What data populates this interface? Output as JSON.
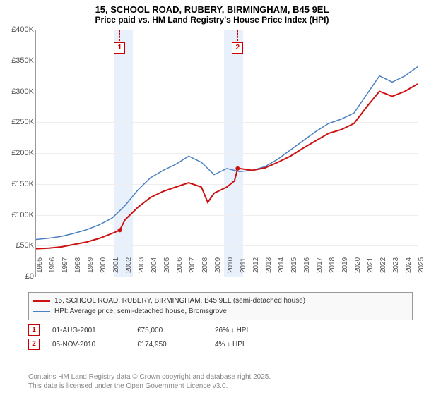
{
  "title_line1": "15, SCHOOL ROAD, RUBERY, BIRMINGHAM, B45 9EL",
  "title_line2": "Price paid vs. HM Land Registry's House Price Index (HPI)",
  "chart": {
    "type": "line",
    "x_start_year": 1995,
    "x_end_year": 2025,
    "ylim": [
      0,
      400000
    ],
    "ytick_step": 50000,
    "ytick_labels": [
      "£0",
      "£50K",
      "£100K",
      "£150K",
      "£200K",
      "£250K",
      "£300K",
      "£350K",
      "£400K"
    ],
    "xtick_years": [
      1995,
      1996,
      1997,
      1998,
      1999,
      2000,
      2001,
      2002,
      2003,
      2004,
      2005,
      2006,
      2007,
      2008,
      2009,
      2010,
      2011,
      2012,
      2013,
      2014,
      2015,
      2016,
      2017,
      2018,
      2019,
      2020,
      2021,
      2022,
      2023,
      2024,
      2025
    ],
    "background_color": "#ffffff",
    "grid_color": "#eeeeee",
    "shaded_bands": [
      {
        "from_year": 2001.1,
        "to_year": 2002.6
      },
      {
        "from_year": 2009.8,
        "to_year": 2011.3
      }
    ],
    "series": [
      {
        "name": "HPI",
        "color": "#4a7fc1",
        "line_width": 1.5,
        "data": [
          [
            1995,
            60000
          ],
          [
            1996,
            62000
          ],
          [
            1997,
            65000
          ],
          [
            1998,
            70000
          ],
          [
            1999,
            76000
          ],
          [
            2000,
            84000
          ],
          [
            2001,
            95000
          ],
          [
            2002,
            115000
          ],
          [
            2003,
            140000
          ],
          [
            2004,
            160000
          ],
          [
            2005,
            172000
          ],
          [
            2006,
            182000
          ],
          [
            2007,
            195000
          ],
          [
            2008,
            185000
          ],
          [
            2009,
            165000
          ],
          [
            2010,
            175000
          ],
          [
            2011,
            170000
          ],
          [
            2012,
            172000
          ],
          [
            2013,
            178000
          ],
          [
            2014,
            190000
          ],
          [
            2015,
            205000
          ],
          [
            2016,
            220000
          ],
          [
            2017,
            235000
          ],
          [
            2018,
            248000
          ],
          [
            2019,
            255000
          ],
          [
            2020,
            265000
          ],
          [
            2021,
            295000
          ],
          [
            2022,
            325000
          ],
          [
            2023,
            315000
          ],
          [
            2024,
            325000
          ],
          [
            2025,
            340000
          ]
        ]
      },
      {
        "name": "Price paid",
        "color": "#cc1111",
        "line_width": 2,
        "data": [
          [
            1995,
            45000
          ],
          [
            1996,
            46000
          ],
          [
            1997,
            48000
          ],
          [
            1998,
            52000
          ],
          [
            1999,
            56000
          ],
          [
            2000,
            62000
          ],
          [
            2001,
            70000
          ],
          [
            2001.58,
            75000
          ],
          [
            2002,
            92000
          ],
          [
            2003,
            112000
          ],
          [
            2004,
            128000
          ],
          [
            2005,
            138000
          ],
          [
            2006,
            145000
          ],
          [
            2007,
            152000
          ],
          [
            2008,
            145000
          ],
          [
            2008.5,
            120000
          ],
          [
            2009,
            135000
          ],
          [
            2010,
            145000
          ],
          [
            2010.6,
            155000
          ],
          [
            2010.85,
            174950
          ],
          [
            2011,
            175000
          ],
          [
            2012,
            172000
          ],
          [
            2013,
            176000
          ],
          [
            2014,
            185000
          ],
          [
            2015,
            195000
          ],
          [
            2016,
            208000
          ],
          [
            2017,
            220000
          ],
          [
            2018,
            232000
          ],
          [
            2019,
            238000
          ],
          [
            2020,
            248000
          ],
          [
            2021,
            275000
          ],
          [
            2022,
            300000
          ],
          [
            2023,
            292000
          ],
          [
            2024,
            300000
          ],
          [
            2025,
            312000
          ]
        ]
      }
    ],
    "markers": [
      {
        "id": "1",
        "year": 2001.58,
        "box_y_offset": -24,
        "dot_value": 75000
      },
      {
        "id": "2",
        "year": 2010.85,
        "box_y_offset": -24,
        "dot_value": 174950
      }
    ]
  },
  "legend": {
    "series1": {
      "color": "#cc1111",
      "label": "15, SCHOOL ROAD, RUBERY, BIRMINGHAM, B45 9EL (semi-detached house)"
    },
    "series2": {
      "color": "#4a7fc1",
      "label": "HPI: Average price, semi-detached house, Bromsgrove"
    }
  },
  "events": [
    {
      "id": "1",
      "date": "01-AUG-2001",
      "price": "£75,000",
      "hpi": "26% ↓ HPI"
    },
    {
      "id": "2",
      "date": "05-NOV-2010",
      "price": "£174,950",
      "hpi": "4% ↓ HPI"
    }
  ],
  "attribution": {
    "l1": "Contains HM Land Registry data © Crown copyright and database right 2025.",
    "l2": "This data is licensed under the Open Government Licence v3.0."
  }
}
